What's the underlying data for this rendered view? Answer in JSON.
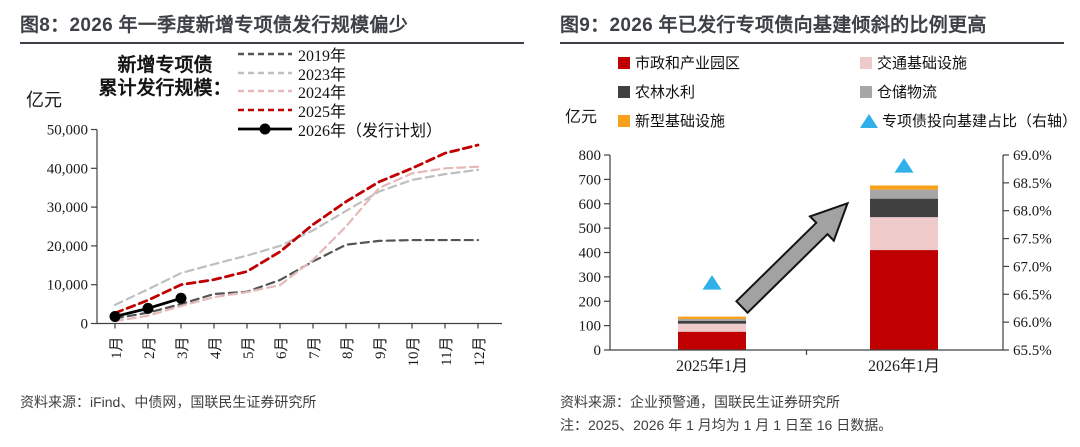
{
  "figure8": {
    "title": "图8：2026 年一季度新增专项债发行规模偏少",
    "unit_label": "亿元",
    "legend_header": [
      "新增专项债",
      "累计发行规模："
    ],
    "source": "资料来源：iFind、中债网，国联民生证券研究所",
    "chart_data": {
      "type": "line",
      "x_categories": [
        "1月",
        "2月",
        "3月",
        "4月",
        "5月",
        "6月",
        "7月",
        "8月",
        "9月",
        "10月",
        "11月",
        "12月"
      ],
      "ylabel": "亿元",
      "ylim": [
        0,
        50000
      ],
      "yticks": [
        0,
        10000,
        20000,
        30000,
        40000,
        50000
      ],
      "ytick_labels": [
        "0",
        "10,000",
        "20,000",
        "30,000",
        "40,000",
        "50,000"
      ],
      "grid": false,
      "legend_position": "top-right",
      "series": [
        {
          "name": "2019年",
          "color": "#545454",
          "style": "dashed",
          "values": [
            1300,
            2800,
            5000,
            7600,
            8200,
            11200,
            16000,
            20300,
            21300,
            21500,
            21500,
            21500
          ]
        },
        {
          "name": "2023年",
          "color": "#BFBFBF",
          "style": "dashed",
          "values": [
            4800,
            8800,
            13000,
            15300,
            17500,
            20000,
            24000,
            29000,
            34000,
            37000,
            38500,
            39600
          ]
        },
        {
          "name": "2024年",
          "color": "#E6B9B9",
          "style": "dashed",
          "values": [
            600,
            2000,
            4500,
            6800,
            8100,
            9900,
            16400,
            25000,
            34900,
            38700,
            40000,
            40400
          ]
        },
        {
          "name": "2025年",
          "color": "#C00000",
          "style": "dashed",
          "values": [
            2700,
            6000,
            10000,
            11300,
            13400,
            18500,
            25500,
            31400,
            36500,
            40000,
            43900,
            46000
          ]
        },
        {
          "name": "2026年（发行计划）",
          "color": "#000000",
          "style": "solid-marker",
          "values": [
            1800,
            3900,
            6500
          ]
        }
      ]
    }
  },
  "figure9": {
    "title": "图9：2026 年已发行专项债向基建倾斜的比例更高",
    "unit_label": "亿元",
    "source": "资料来源：企业预警通，国联民生证券研究所",
    "note": "注：2025、2026 年 1 月均为 1 月 1 日至 16 日数据。",
    "chart_data": {
      "type": "bar",
      "stacked": true,
      "categories": [
        "2025年1月",
        "2026年1月"
      ],
      "left_axis": {
        "ylim": [
          0,
          800
        ],
        "yticks": [
          0,
          100,
          200,
          300,
          400,
          500,
          600,
          700,
          800
        ],
        "ytick_labels": [
          "0",
          "100",
          "200",
          "300",
          "400",
          "500",
          "600",
          "700",
          "800"
        ]
      },
      "right_axis": {
        "ylim": [
          65.5,
          69.0
        ],
        "yticks": [
          65.5,
          66.0,
          66.5,
          67.0,
          67.5,
          68.0,
          68.5,
          69.0
        ],
        "ytick_labels": [
          "65.5%",
          "66.0%",
          "66.5%",
          "67.0%",
          "67.5%",
          "68.0%",
          "68.5%",
          "69.0%"
        ]
      },
      "series": [
        {
          "name": "市政和产业园区",
          "color": "#C00000",
          "values": [
            75,
            410
          ]
        },
        {
          "name": "交通基础设施",
          "color": "#EECACA",
          "values": [
            33,
            135
          ]
        },
        {
          "name": "农林水利",
          "color": "#404040",
          "values": [
            12,
            76
          ]
        },
        {
          "name": "仓储物流",
          "color": "#A6A6A6",
          "values": [
            7,
            37
          ]
        },
        {
          "name": "新型基础设施",
          "color": "#F9A11B",
          "values": [
            10,
            17
          ]
        }
      ],
      "scatter": {
        "name": "专项债投向基建占比（右轴）",
        "color": "#30B0E8",
        "marker": "triangle",
        "values_pct": [
          66.7,
          68.8
        ]
      },
      "legend_columns": [
        [
          "市政和产业园区",
          "农林水利",
          "新型基础设施"
        ],
        [
          "交通基础设施",
          "仓储物流",
          "专项债投向基建占比（右轴）"
        ]
      ],
      "annotation_arrow": true
    }
  }
}
